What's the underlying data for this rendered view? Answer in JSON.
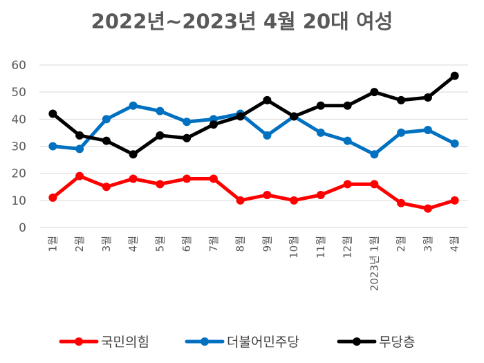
{
  "chart_data": {
    "type": "line",
    "title": "2022년~2023년 4월 20대 여성",
    "categories": [
      "1월",
      "2월",
      "3월",
      "4월",
      "5월",
      "6월",
      "7월",
      "8월",
      "9월",
      "10월",
      "11월",
      "12월",
      "2023년 1월",
      "2월",
      "3월",
      "4월"
    ],
    "ylim": [
      0,
      60
    ],
    "yticks": [
      0,
      10,
      20,
      30,
      40,
      50,
      60
    ],
    "grid": true,
    "legend": "bottom",
    "series": [
      {
        "name": "국민의힘",
        "color": "#ff0000",
        "values": [
          11,
          19,
          15,
          18,
          16,
          18,
          18,
          10,
          12,
          10,
          12,
          16,
          16,
          9,
          7,
          10
        ]
      },
      {
        "name": "더불어민주당",
        "color": "#0070c0",
        "values": [
          30,
          29,
          40,
          45,
          43,
          39,
          40,
          42,
          34,
          41,
          35,
          32,
          27,
          35,
          36,
          31
        ]
      },
      {
        "name": "무당층",
        "color": "#000000",
        "values": [
          42,
          34,
          32,
          27,
          34,
          33,
          38,
          41,
          47,
          41,
          45,
          45,
          50,
          47,
          48,
          56
        ]
      }
    ]
  }
}
